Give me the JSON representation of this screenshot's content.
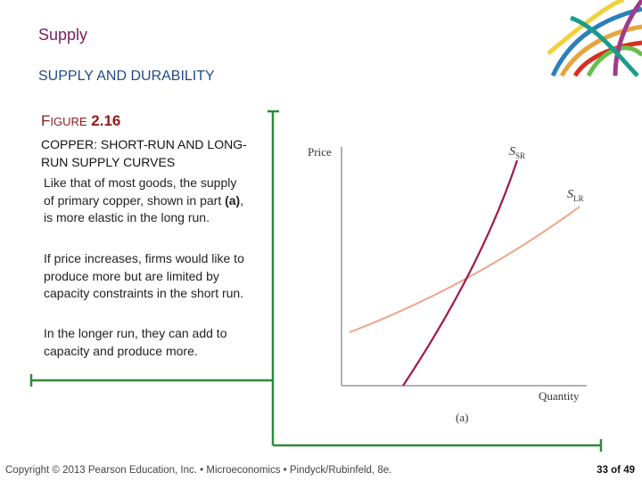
{
  "header": {
    "title": "Supply",
    "subtitle": "SUPPLY AND DURABILITY"
  },
  "figure": {
    "number_initial": "F",
    "number_rest": "IGURE",
    "number": "2.16",
    "caption": "COPPER: SHORT-RUN AND LONG-RUN SUPPLY CURVES"
  },
  "paragraphs": [
    {
      "before": "Like that of most goods, the supply of primary copper, shown in part ",
      "bold": "(a)",
      "after": ", is more elastic in the long run."
    },
    {
      "text": "If price increases, firms would like to produce more but are limited by capacity constraints in the short run."
    },
    {
      "text": "In the longer run, they can add to capacity and produce more."
    }
  ],
  "diagram": {
    "y_label": "Price",
    "x_label": "Quantity",
    "panel": "(a)",
    "curves": [
      {
        "symbol": "S",
        "subscript": "SR"
      },
      {
        "symbol": "S",
        "subscript": "LR"
      }
    ]
  },
  "footer": {
    "copyright": "Copyright © 2013 Pearson Education, Inc. • Microeconomics • Pindyck/Rubinfeld, 8e.",
    "page": "33 of 49"
  }
}
